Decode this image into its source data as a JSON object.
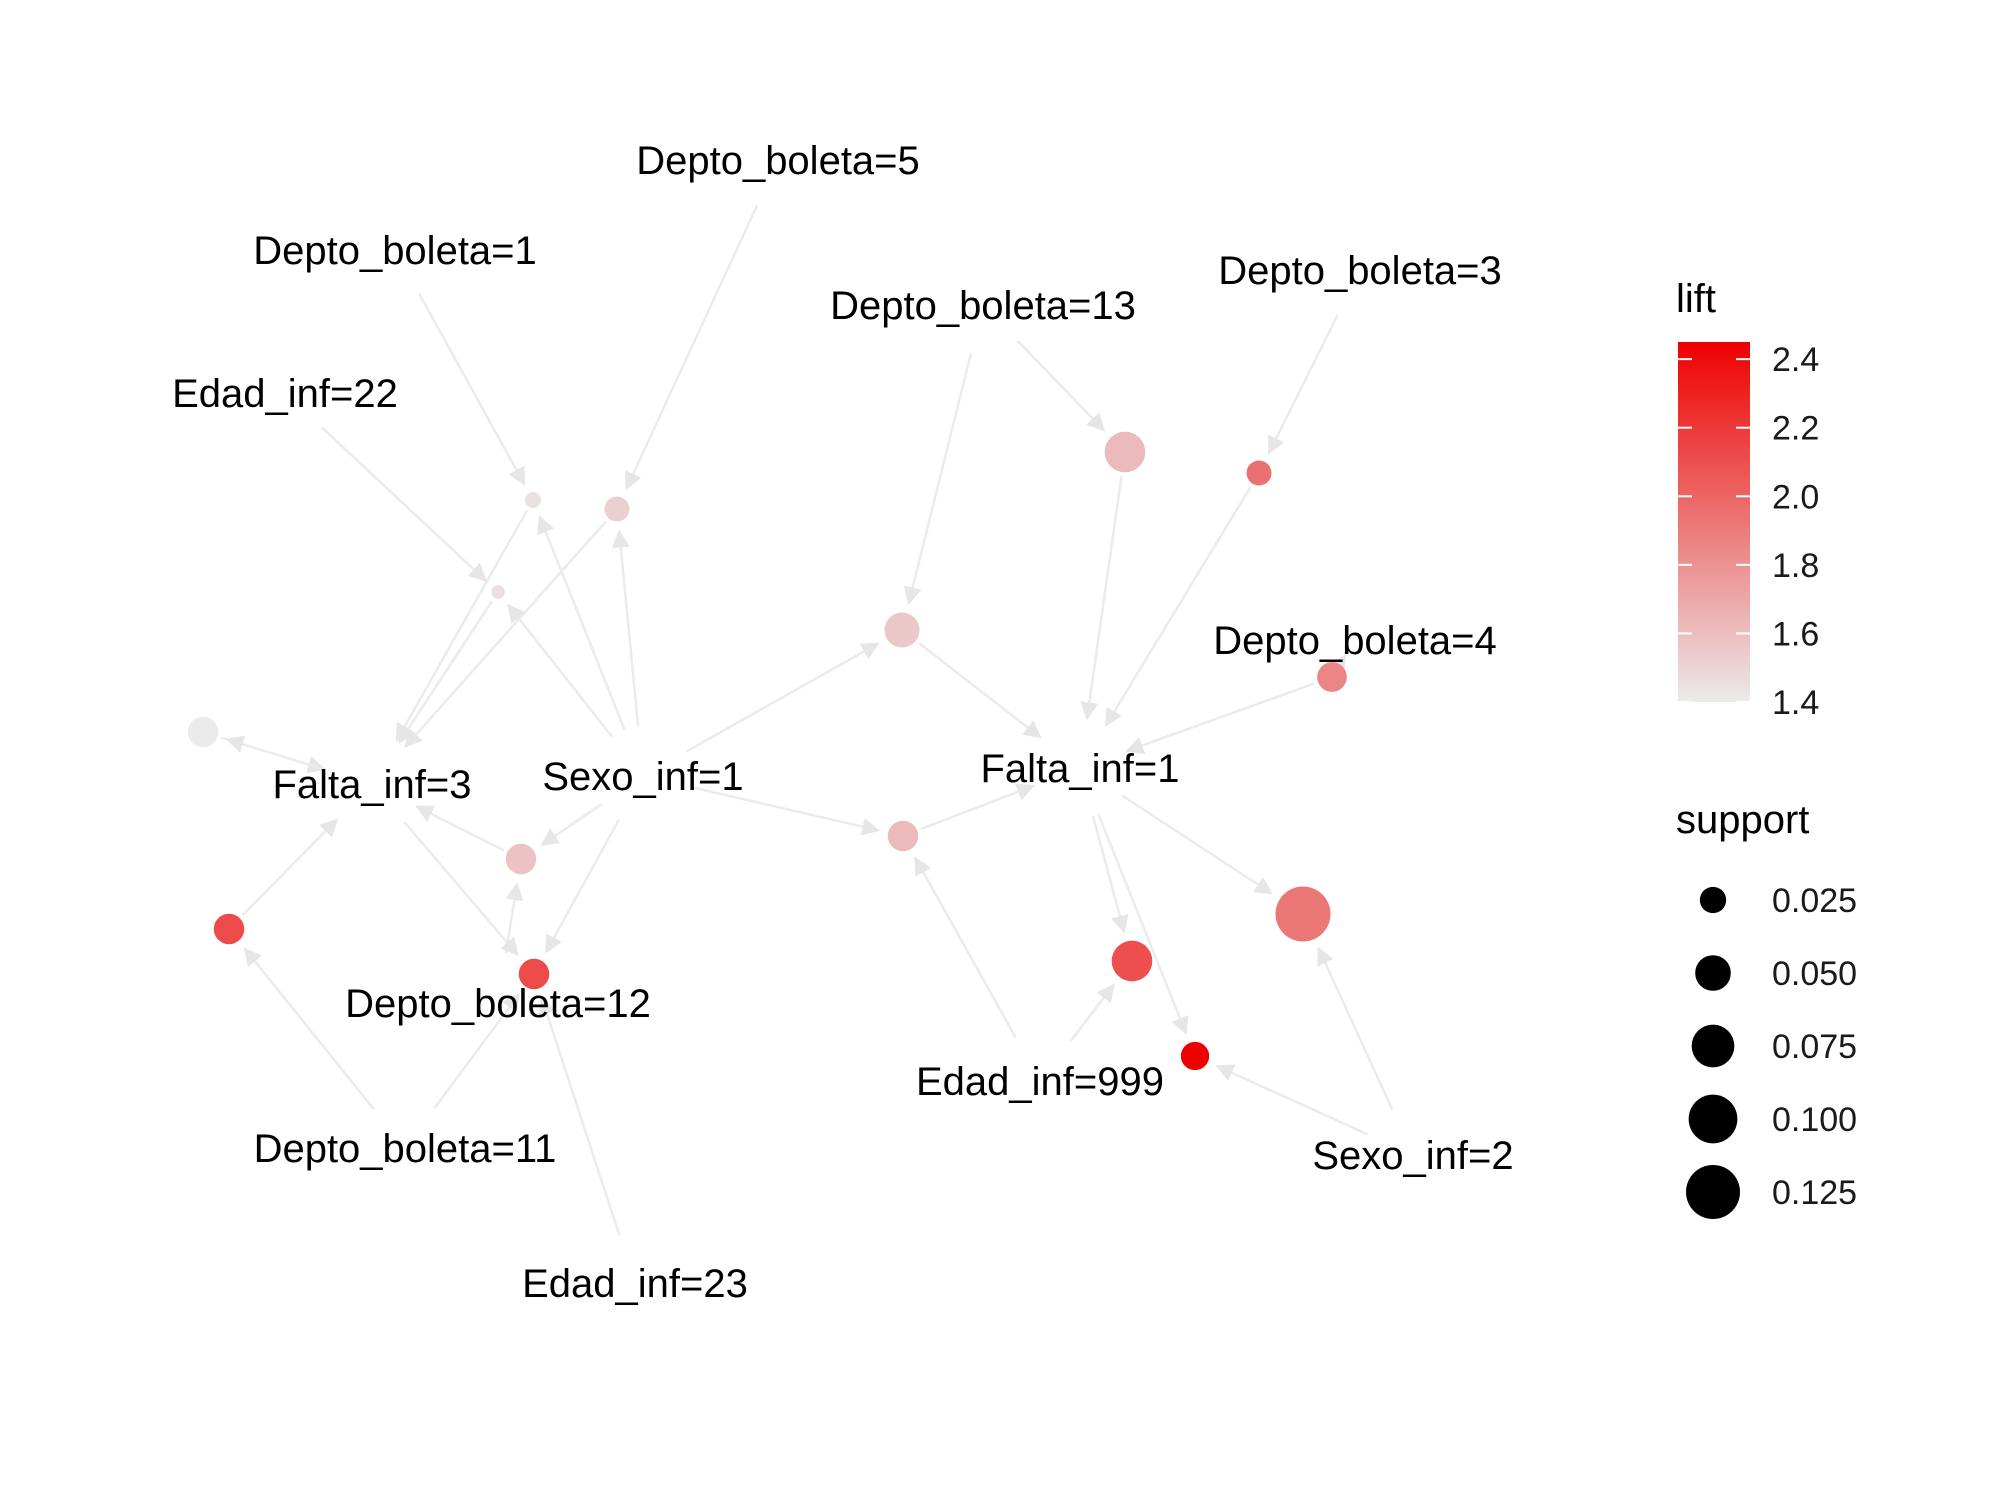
{
  "items": [
    {
      "id": "depto5",
      "label": "Depto_boleta=5"
    },
    {
      "id": "depto1",
      "label": "Depto_boleta=1"
    },
    {
      "id": "depto13",
      "label": "Depto_boleta=13"
    },
    {
      "id": "depto3",
      "label": "Depto_boleta=3"
    },
    {
      "id": "edad22",
      "label": "Edad_inf=22"
    },
    {
      "id": "depto4",
      "label": "Depto_boleta=4"
    },
    {
      "id": "falta3",
      "label": "Falta_inf=3"
    },
    {
      "id": "sexo1",
      "label": "Sexo_inf=1"
    },
    {
      "id": "falta1",
      "label": "Falta_inf=1"
    },
    {
      "id": "depto12",
      "label": "Depto_boleta=12"
    },
    {
      "id": "edad999",
      "label": "Edad_inf=999"
    },
    {
      "id": "depto11",
      "label": "Depto_boleta=11"
    },
    {
      "id": "sexo2",
      "label": "Sexo_inf=2"
    },
    {
      "id": "edad23",
      "label": "Edad_inf=23"
    }
  ],
  "rules": [
    {
      "id": "r1",
      "lift": 1.45,
      "support": 0.005
    },
    {
      "id": "r2",
      "lift": 1.52,
      "support": 0.018
    },
    {
      "id": "r3",
      "lift": 1.45,
      "support": 0.003
    },
    {
      "id": "r4",
      "lift": 1.62,
      "support": 0.06
    },
    {
      "id": "r5",
      "lift": 1.95,
      "support": 0.018
    },
    {
      "id": "r6",
      "lift": 1.55,
      "support": 0.042
    },
    {
      "id": "r7",
      "lift": 1.4,
      "support": 0.03
    },
    {
      "id": "r8",
      "lift": 1.58,
      "support": 0.03
    },
    {
      "id": "r9",
      "lift": 1.62,
      "support": 0.03
    },
    {
      "id": "r10",
      "lift": 1.85,
      "support": 0.028
    },
    {
      "id": "r11",
      "lift": 2.12,
      "support": 0.03
    },
    {
      "id": "r12",
      "lift": 2.12,
      "support": 0.03
    },
    {
      "id": "r13",
      "lift": 2.1,
      "support": 0.06
    },
    {
      "id": "r14",
      "lift": 1.92,
      "support": 0.12
    },
    {
      "id": "r15",
      "lift": 2.45,
      "support": 0.025
    }
  ],
  "edges": [
    [
      "depto5",
      "r2"
    ],
    [
      "depto1",
      "r1"
    ],
    [
      "edad22",
      "r3"
    ],
    [
      "r1",
      "falta3"
    ],
    [
      "r3",
      "falta3"
    ],
    [
      "r2",
      "falta3"
    ],
    [
      "sexo1",
      "r1"
    ],
    [
      "sexo1",
      "r2"
    ],
    [
      "sexo1",
      "r3"
    ],
    [
      "sexo1",
      "r6"
    ],
    [
      "sexo1",
      "r9"
    ],
    [
      "sexo1",
      "r8"
    ],
    [
      "sexo1",
      "r12"
    ],
    [
      "depto13",
      "r4"
    ],
    [
      "depto13",
      "r6"
    ],
    [
      "depto3",
      "r5"
    ],
    [
      "r4",
      "falta1"
    ],
    [
      "r5",
      "falta1"
    ],
    [
      "r6",
      "falta1"
    ],
    [
      "r10",
      "falta1"
    ],
    [
      "depto4",
      "r10"
    ],
    [
      "r7",
      "falta3"
    ],
    [
      "r8",
      "falta3"
    ],
    [
      "r11",
      "falta3"
    ],
    [
      "depto12",
      "r8"
    ],
    [
      "depto11",
      "r11"
    ],
    [
      "depto11",
      "r12"
    ],
    [
      "edad23",
      "r12"
    ],
    [
      "falta3",
      "r12"
    ],
    [
      "falta3",
      "r7"
    ],
    [
      "r9",
      "falta1"
    ],
    [
      "edad999",
      "r9"
    ],
    [
      "edad999",
      "r13"
    ],
    [
      "falta1",
      "r13"
    ],
    [
      "falta1",
      "r14"
    ],
    [
      "falta1",
      "r15"
    ],
    [
      "sexo2",
      "r14"
    ],
    [
      "sexo2",
      "r15"
    ]
  ],
  "legend": {
    "lift_title": "lift",
    "lift_ticks": [
      "2.4",
      "2.2",
      "2.0",
      "1.8",
      "1.6",
      "1.4"
    ],
    "lift_tick_values": [
      2.4,
      2.2,
      2.0,
      1.8,
      1.6,
      1.4
    ],
    "lift_range": [
      1.4,
      2.45
    ],
    "lift_colors": [
      "#ebebeb",
      "#ee0000"
    ],
    "support_title": "support",
    "support_ticks": [
      "0.025",
      "0.050",
      "0.075",
      "0.100",
      "0.125"
    ],
    "support_tick_values": [
      0.025,
      0.05,
      0.075,
      0.1,
      0.125
    ]
  },
  "colors": {
    "edge": "#ebebeb",
    "support_key": "#000000"
  }
}
